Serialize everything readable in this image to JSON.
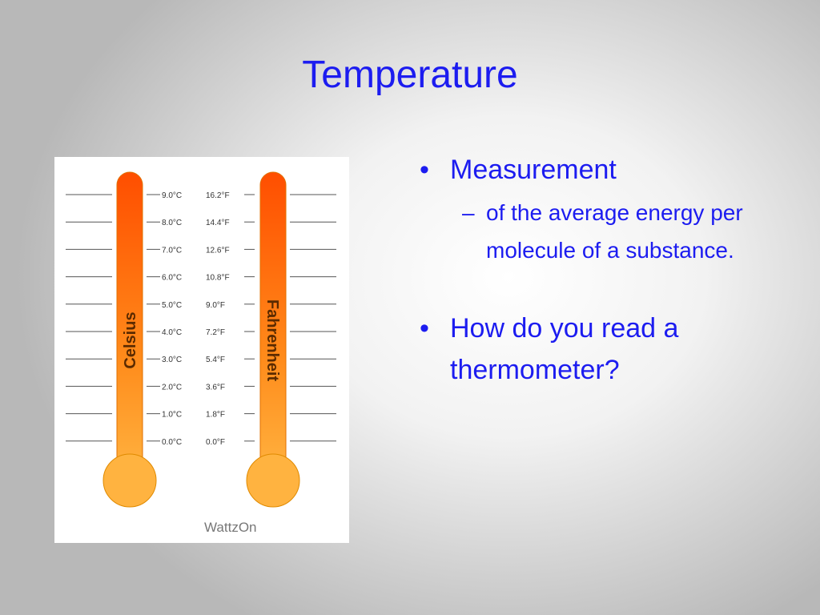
{
  "title": "Temperature",
  "figure": {
    "celsius_labels": [
      "9.0°C",
      "8.0°C",
      "7.0°C",
      "6.0°C",
      "5.0°C",
      "4.0°C",
      "3.0°C",
      "2.0°C",
      "1.0°C",
      "0.0°C"
    ],
    "fahrenheit_labels": [
      "16.2°F",
      "14.4°F",
      "12.6°F",
      "10.8°F",
      "9.0°F",
      "7.2°F",
      "5.4°F",
      "3.6°F",
      "1.8°F",
      "0.0°F"
    ],
    "celsius_caption": "Celsius",
    "fahrenheit_caption": "Fahrenheit",
    "logo": "WattzOn"
  },
  "bullets": [
    {
      "text": "Measurement",
      "sub": [
        "of the average energy per molecule of a substance."
      ]
    },
    {
      "text": "How do you read a thermometer?"
    }
  ]
}
